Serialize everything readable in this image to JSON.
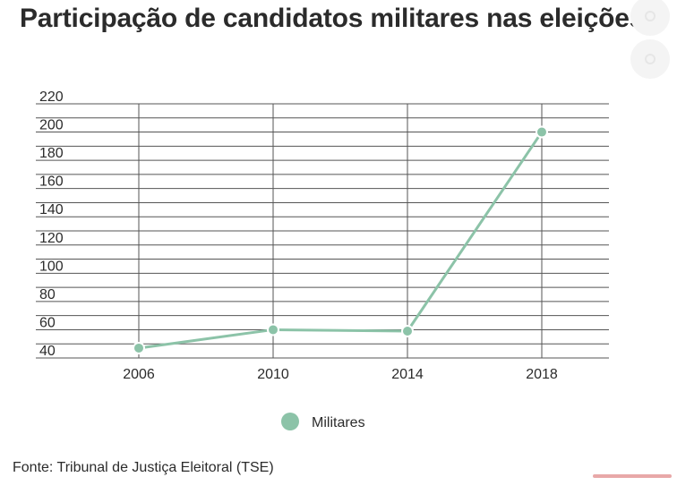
{
  "header": {
    "title": "Participação de candidatos militares nas eleições"
  },
  "chart_data": {
    "type": "line",
    "title": "Participação de candidatos militares nas eleições",
    "x": [
      "2006",
      "2010",
      "2014",
      "2018"
    ],
    "series": [
      {
        "name": "Militares",
        "values": [
          47,
          60,
          59,
          200
        ],
        "color": "#8cc3a8"
      }
    ],
    "ylim": [
      40,
      220
    ],
    "yticks": [
      40,
      60,
      80,
      100,
      120,
      140,
      160,
      180,
      200,
      220
    ],
    "grid": true,
    "legend_position": "bottom-center",
    "xlabel": "",
    "ylabel": ""
  },
  "legend": {
    "label": "Militares"
  },
  "footer": {
    "source": "Fonte: Tribunal de Justiça Eleitoral (TSE)"
  },
  "colors": {
    "series": "#8cc3a8",
    "grid": "#555555",
    "text": "#2b2b2b"
  }
}
